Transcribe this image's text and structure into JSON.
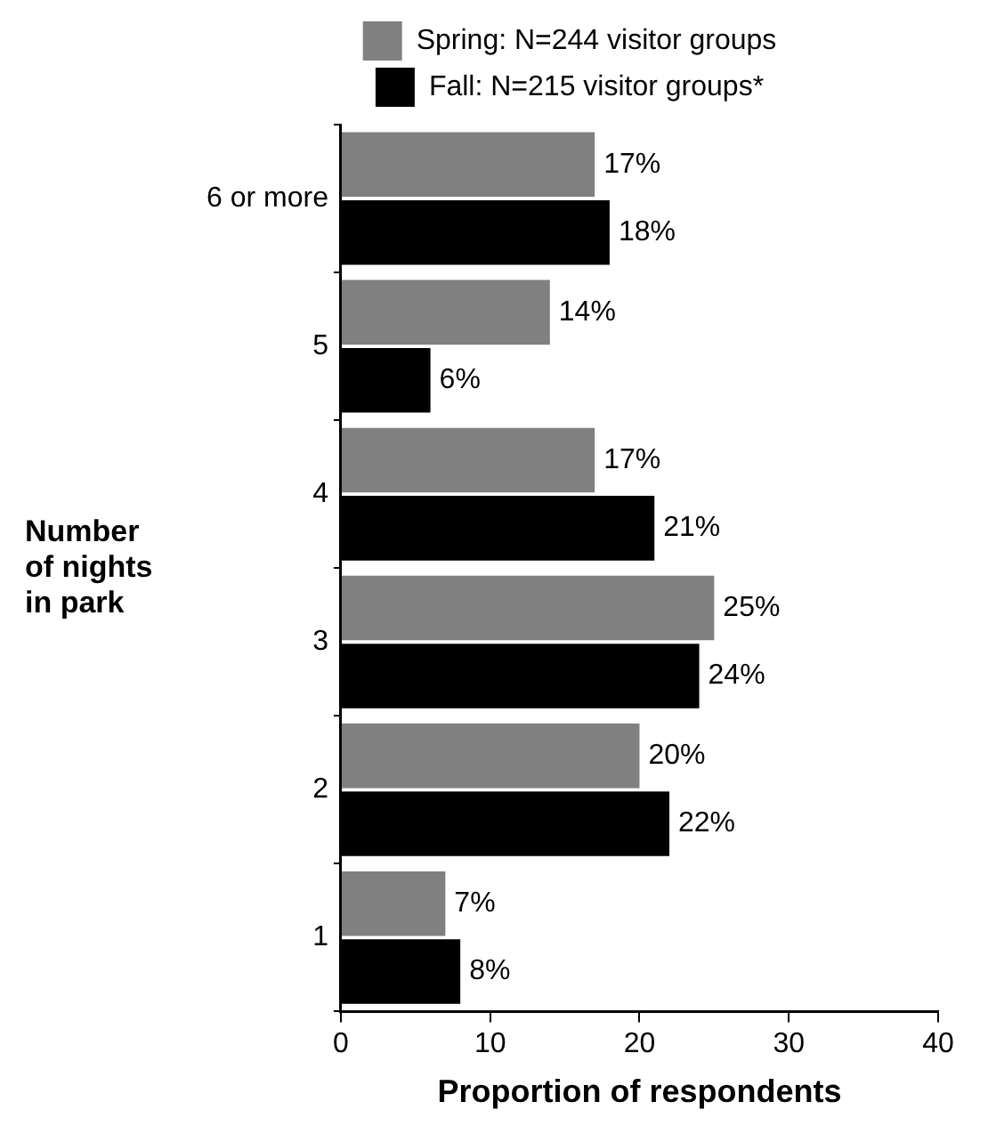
{
  "chart_data": {
    "type": "bar",
    "orientation": "horizontal",
    "xlabel": "Proportion of respondents",
    "ylabel": "Number\nof nights\nin park",
    "categories": [
      "6 or more",
      "5",
      "4",
      "3",
      "2",
      "1"
    ],
    "series": [
      {
        "name": "Spring: N=244 visitor groups",
        "color": "#808080",
        "values": [
          17,
          14,
          17,
          25,
          20,
          7
        ],
        "value_labels": [
          "17%",
          "14%",
          "17%",
          "25%",
          "20%",
          "7%"
        ]
      },
      {
        "name": "Fall: N=215 visitor groups*",
        "color": "#000000",
        "values": [
          18,
          6,
          21,
          24,
          22,
          8
        ],
        "value_labels": [
          "18%",
          "6%",
          "21%",
          "24%",
          "22%",
          "8%"
        ]
      }
    ],
    "xlim": [
      0,
      40
    ],
    "xticks": [
      0,
      10,
      20,
      30,
      40
    ],
    "grid": false,
    "legend": "top"
  }
}
